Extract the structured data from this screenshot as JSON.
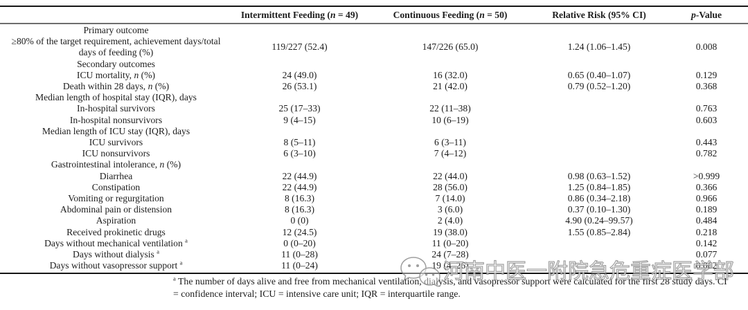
{
  "colors": {
    "text": "#1c1c1c",
    "border_dark": "#161616",
    "border_gray": "#6e6e6e",
    "watermark_gray": "#8f8f8f"
  },
  "table": {
    "columns": [
      {
        "key": "label",
        "header": []
      },
      {
        "key": "intermittent",
        "header": [
          [
            "Intermittent Feeding (",
            ""
          ],
          [
            "n",
            "i"
          ],
          [
            " = 49)",
            ""
          ]
        ]
      },
      {
        "key": "continuous",
        "header": [
          [
            "Continuous Feeding (",
            ""
          ],
          [
            "n",
            "i"
          ],
          [
            " = 50)",
            ""
          ]
        ]
      },
      {
        "key": "rr",
        "header": [
          [
            "Relative Risk (95% CI)",
            ""
          ]
        ]
      },
      {
        "key": "p",
        "header": [
          [
            "p",
            "i"
          ],
          [
            "-Value",
            ""
          ]
        ]
      }
    ],
    "rows": [
      {
        "label": [
          [
            "Primary outcome",
            ""
          ]
        ],
        "intermittent": "",
        "continuous": "",
        "rr": "",
        "p": ""
      },
      {
        "label": [
          [
            "≥80% of the target requirement, achievement days/total days of feeding (%)",
            ""
          ]
        ],
        "intermittent": "119/227 (52.4)",
        "continuous": "147/226 (65.0)",
        "rr": "1.24 (1.06–1.45)",
        "p": "0.008"
      },
      {
        "label": [
          [
            "Secondary outcomes",
            ""
          ]
        ],
        "intermittent": "",
        "continuous": "",
        "rr": "",
        "p": ""
      },
      {
        "label": [
          [
            "ICU mortality, ",
            ""
          ],
          [
            "n",
            "i"
          ],
          [
            " (%)",
            ""
          ]
        ],
        "intermittent": "24 (49.0)",
        "continuous": "16 (32.0)",
        "rr": "0.65 (0.40–1.07)",
        "p": "0.129"
      },
      {
        "label": [
          [
            "Death within 28 days, ",
            ""
          ],
          [
            "n",
            "i"
          ],
          [
            " (%)",
            ""
          ]
        ],
        "intermittent": "26 (53.1)",
        "continuous": "21 (42.0)",
        "rr": "0.79 (0.52–1.20)",
        "p": "0.368"
      },
      {
        "label": [
          [
            "Median length of hospital stay (IQR), days",
            ""
          ]
        ],
        "intermittent": "",
        "continuous": "",
        "rr": "",
        "p": ""
      },
      {
        "label": [
          [
            "In-hospital survivors",
            ""
          ]
        ],
        "intermittent": "25 (17–33)",
        "continuous": "22 (11–38)",
        "rr": "",
        "p": "0.763"
      },
      {
        "label": [
          [
            "In-hospital nonsurvivors",
            ""
          ]
        ],
        "intermittent": "9 (4–15)",
        "continuous": "10 (6–19)",
        "rr": "",
        "p": "0.603"
      },
      {
        "label": [
          [
            "Median length of ICU stay (IQR), days",
            ""
          ]
        ],
        "intermittent": "",
        "continuous": "",
        "rr": "",
        "p": ""
      },
      {
        "label": [
          [
            "ICU survivors",
            ""
          ]
        ],
        "intermittent": "8 (5–11)",
        "continuous": "6 (3–11)",
        "rr": "",
        "p": "0.443"
      },
      {
        "label": [
          [
            "ICU nonsurvivors",
            ""
          ]
        ],
        "intermittent": "6 (3–10)",
        "continuous": "7 (4–12)",
        "rr": "",
        "p": "0.782"
      },
      {
        "label": [
          [
            "Gastrointestinal intolerance, ",
            ""
          ],
          [
            "n",
            "i"
          ],
          [
            " (%)",
            ""
          ]
        ],
        "intermittent": "",
        "continuous": "",
        "rr": "",
        "p": ""
      },
      {
        "label": [
          [
            "Diarrhea",
            ""
          ]
        ],
        "intermittent": "22 (44.9)",
        "continuous": "22 (44.0)",
        "rr": "0.98 (0.63–1.52)",
        "p": ">0.999"
      },
      {
        "label": [
          [
            "Constipation",
            ""
          ]
        ],
        "intermittent": "22 (44.9)",
        "continuous": "28 (56.0)",
        "rr": "1.25 (0.84–1.85)",
        "p": "0.366"
      },
      {
        "label": [
          [
            "Vomiting or regurgitation",
            ""
          ]
        ],
        "intermittent": "8 (16.3)",
        "continuous": "7 (14.0)",
        "rr": "0.86 (0.34–2.18)",
        "p": "0.966"
      },
      {
        "label": [
          [
            "Abdominal pain or distension",
            ""
          ]
        ],
        "intermittent": "8 (16.3)",
        "continuous": "3 (6.0)",
        "rr": "0.37 (0.10–1.30)",
        "p": "0.189"
      },
      {
        "label": [
          [
            "Aspiration",
            ""
          ]
        ],
        "intermittent": "0 (0)",
        "continuous": "2 (4.0)",
        "rr": "4.90 (0.24–99.57)",
        "p": "0.484"
      },
      {
        "label": [
          [
            "Received prokinetic drugs",
            ""
          ]
        ],
        "intermittent": "12 (24.5)",
        "continuous": "19 (38.0)",
        "rr": "1.55 (0.85–2.84)",
        "p": "0.218"
      },
      {
        "label": [
          [
            "Days without mechanical ventilation ",
            ""
          ],
          [
            "a",
            "sup"
          ]
        ],
        "intermittent": "0 (0–20)",
        "continuous": "11 (0–20)",
        "rr": "",
        "p": "0.142"
      },
      {
        "label": [
          [
            "Days without dialysis ",
            ""
          ],
          [
            "a",
            "sup"
          ]
        ],
        "intermittent": "11 (0–28)",
        "continuous": "24 (7–28)",
        "rr": "",
        "p": "0.077"
      },
      {
        "label": [
          [
            "Days without vasopressor support ",
            ""
          ],
          [
            "a",
            "sup"
          ]
        ],
        "intermittent": "11 (0–24)",
        "continuous": "19 (4–26)",
        "rr": "",
        "p": "0.062"
      }
    ]
  },
  "footnote": {
    "marker": "a",
    "text": " The number of days alive and free from mechanical ventilation, dialysis, and vasopressor support were calculated for the first 28 study days. CI = confidence interval; ICU = intensive care unit; IQR = interquartile range."
  },
  "watermark": {
    "icon": "wechat-icon",
    "text": "河南中医一附院急危重症医学部"
  }
}
